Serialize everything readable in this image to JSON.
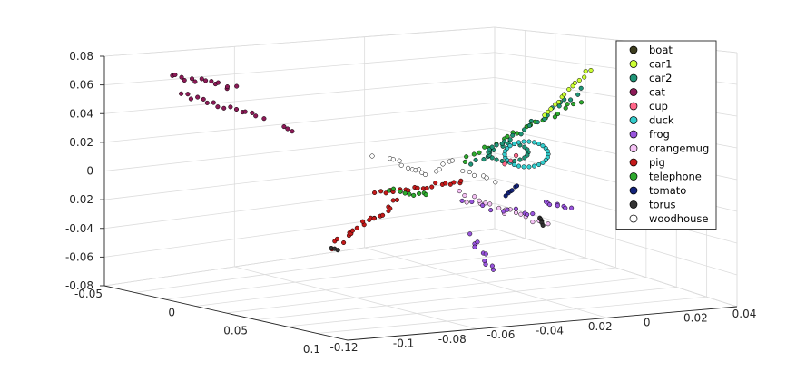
{
  "chart_data": {
    "type": "scatter",
    "projection": "3d",
    "grid": true,
    "legend_position": "top-right",
    "axes": {
      "z": {
        "ticks": [
          "0.08",
          "0.06",
          "0.04",
          "0.02",
          "0",
          "-0.02",
          "-0.04",
          "-0.06",
          "-0.08"
        ]
      },
      "y": {
        "ticks": [
          "-0.05",
          "0",
          "0.05",
          "0.1"
        ]
      },
      "x": {
        "ticks": [
          "-0.12",
          "-0.1",
          "-0.08",
          "-0.06",
          "-0.04",
          "-0.02",
          "0",
          "0.02",
          "0.04"
        ]
      }
    },
    "series": [
      {
        "name": "boat",
        "color": "#3d3d1f"
      },
      {
        "name": "car1",
        "color": "#ccff33"
      },
      {
        "name": "car2",
        "color": "#1f9477"
      },
      {
        "name": "cat",
        "color": "#8c1a57"
      },
      {
        "name": "cup",
        "color": "#ff6688"
      },
      {
        "name": "duck",
        "color": "#33cccc"
      },
      {
        "name": "frog",
        "color": "#9955dd"
      },
      {
        "name": "orangemug",
        "color": "#f5c2f5"
      },
      {
        "name": "pig",
        "color": "#c41a1a"
      },
      {
        "name": "telephone",
        "color": "#2eaa2e"
      },
      {
        "name": "tomato",
        "color": "#14237a"
      },
      {
        "name": "torus",
        "color": "#333333"
      },
      {
        "name": "woodhouse",
        "color": "#ffffff"
      }
    ]
  }
}
